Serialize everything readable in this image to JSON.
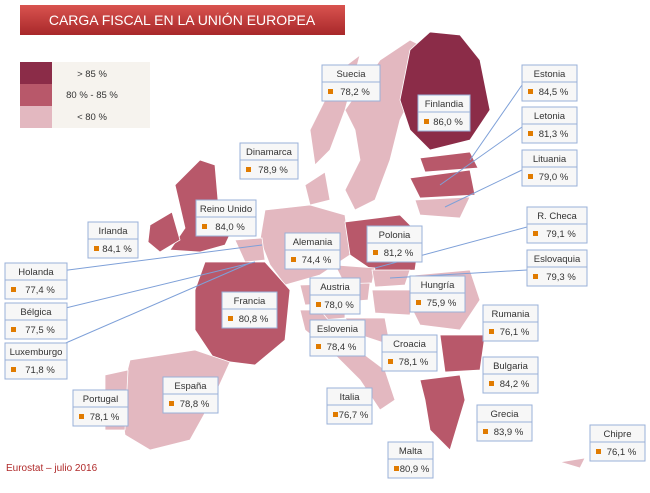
{
  "title": "CARGA FISCAL EN LA UNIÓN EUROPEA",
  "legend": [
    "> 85 %",
    "80 % - 85 %",
    "< 80 %"
  ],
  "countries": [
    {
      "name": "Suecia",
      "value": "78,2 %"
    },
    {
      "name": "Finlandia",
      "value": "86,0 %"
    },
    {
      "name": "Estonia",
      "value": "84,5 %"
    },
    {
      "name": "Letonia",
      "value": "81,3 %"
    },
    {
      "name": "Lituania",
      "value": "79,0 %"
    },
    {
      "name": "Dinamarca",
      "value": "78,9 %"
    },
    {
      "name": "Reino Unido",
      "value": "84,0 %"
    },
    {
      "name": "Irlanda",
      "value": "84,1 %"
    },
    {
      "name": "Alemania",
      "value": "74,4 %"
    },
    {
      "name": "Polonia",
      "value": "81,2 %"
    },
    {
      "name": "R. Checa",
      "value": "79,1 %"
    },
    {
      "name": "Eslovaquia",
      "value": "79,3 %"
    },
    {
      "name": "Holanda",
      "value": "77,4 %"
    },
    {
      "name": "Bélgica",
      "value": "77,5 %"
    },
    {
      "name": "Luxemburgo",
      "value": "71,8 %"
    },
    {
      "name": "Francia",
      "value": "80,8 %"
    },
    {
      "name": "Austria",
      "value": "78,0 %"
    },
    {
      "name": "Hungría",
      "value": "75,9 %"
    },
    {
      "name": "Rumania",
      "value": "76,1 %"
    },
    {
      "name": "Eslovenia",
      "value": "78,4 %"
    },
    {
      "name": "Croacia",
      "value": "78,1 %"
    },
    {
      "name": "Bulgaria",
      "value": "84,2 %"
    },
    {
      "name": "España",
      "value": "78,8 %"
    },
    {
      "name": "Portugal",
      "value": "78,1 %"
    },
    {
      "name": "Italia",
      "value": "76,7 %"
    },
    {
      "name": "Grecia",
      "value": "83,9 %"
    },
    {
      "name": "Malta",
      "value": "80,9 %"
    },
    {
      "name": "Chipre",
      "value": "76,1 %"
    }
  ],
  "source": "Eurostat  – julio 2016"
}
